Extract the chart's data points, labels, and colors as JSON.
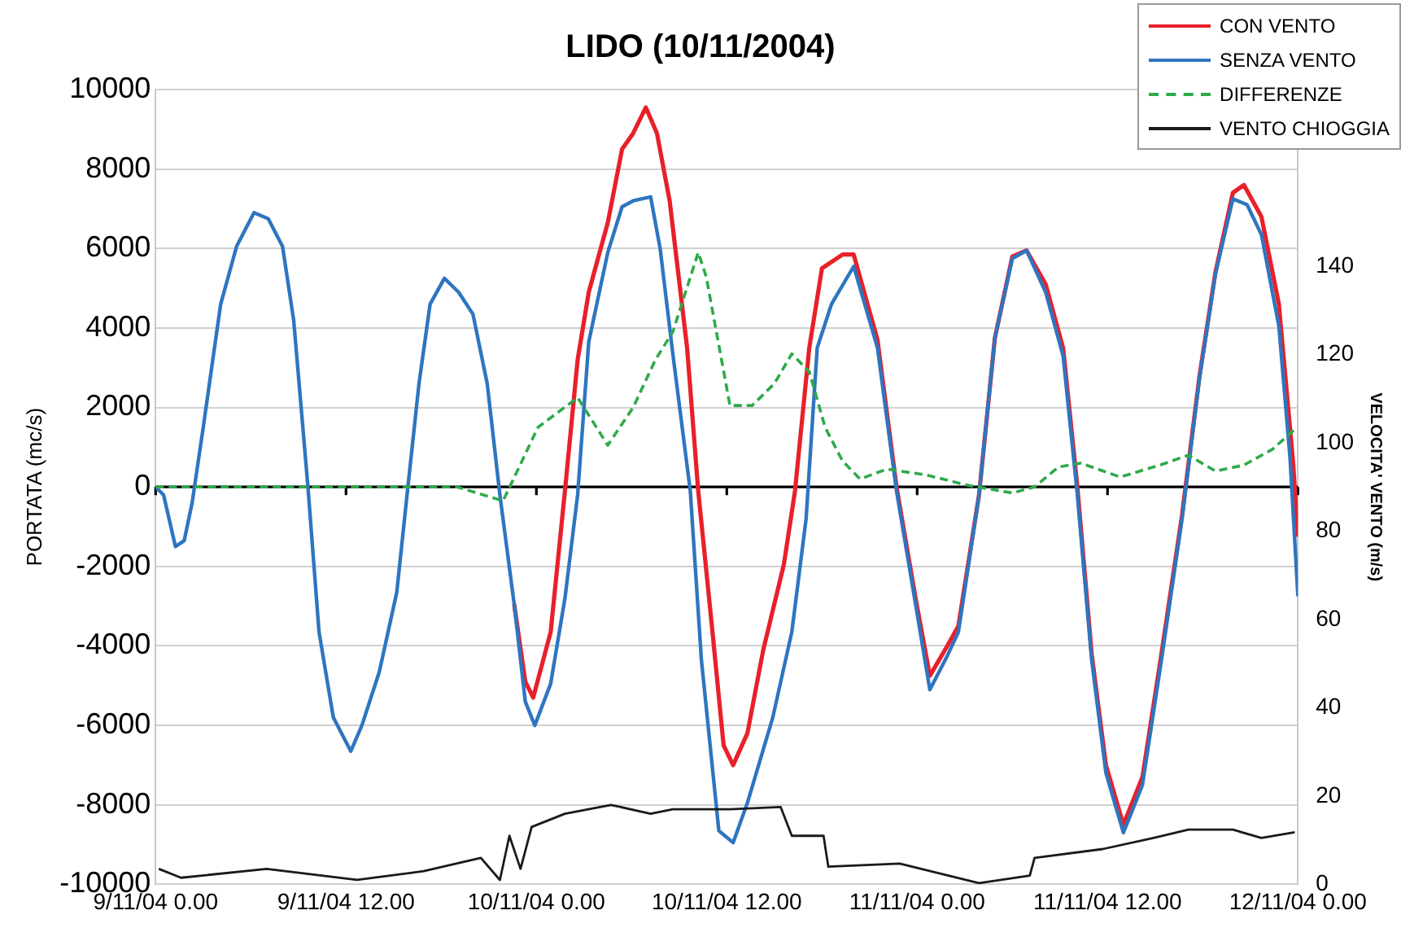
{
  "chart_data": {
    "type": "line",
    "title": "LIDO (10/11/2004)",
    "ylabel": "PORTATA (mc/s)",
    "y2label": "VELOCITA' VENTO (m/s)",
    "xlim": [
      "2004-11-09T00:00",
      "2004-11-12T00:00"
    ],
    "xticks": [
      {
        "value": "2004-11-09T00:00",
        "label": "9/11/04 0.00"
      },
      {
        "value": "2004-11-09T12:00",
        "label": "9/11/04 12.00"
      },
      {
        "value": "2004-11-10T00:00",
        "label": "10/11/04 0.00"
      },
      {
        "value": "2004-11-10T12:00",
        "label": "10/11/04 12.00"
      },
      {
        "value": "2004-11-11T00:00",
        "label": "11/11/04 0.00"
      },
      {
        "value": "2004-11-11T12:00",
        "label": "11/11/04 12.00"
      },
      {
        "value": "2004-11-12T00:00",
        "label": "12/11/04 0.00"
      }
    ],
    "ylim": [
      -10000,
      10000
    ],
    "yticks": [
      -10000,
      -8000,
      -6000,
      -4000,
      -2000,
      0,
      2000,
      4000,
      6000,
      8000,
      10000
    ],
    "y2lim": [
      0,
      180
    ],
    "y2ticks": [
      0,
      20,
      40,
      60,
      80,
      100,
      120,
      140
    ],
    "grid": "y",
    "legend": "top right",
    "marker": "none",
    "ref_lines": [
      {
        "axis": "y",
        "value": 0,
        "color": "#000000"
      }
    ],
    "series": [
      {
        "name": "CON VENTO",
        "color": "#e8202a",
        "line_style": "solid",
        "x": [
          "2004-11-09T22:36",
          "2004-11-09T23:18",
          "2004-11-09T23:48",
          "2004-11-10T00:54",
          "2004-11-10T01:48",
          "2004-11-10T02:36",
          "2004-11-10T03:18",
          "2004-11-10T04:30",
          "2004-11-10T05:24",
          "2004-11-10T06:06",
          "2004-11-10T06:54",
          "2004-11-10T07:36",
          "2004-11-10T08:24",
          "2004-11-10T09:30",
          "2004-11-10T10:12",
          "2004-11-10T11:06",
          "2004-11-10T11:48",
          "2004-11-10T12:24",
          "2004-11-10T13:18",
          "2004-11-10T14:18",
          "2004-11-10T15:36",
          "2004-11-10T16:18",
          "2004-11-10T17:12",
          "2004-11-10T18:00",
          "2004-11-10T19:18",
          "2004-11-10T20:00",
          "2004-11-10T21:30",
          "2004-11-10T22:42",
          "2004-11-10T23:54",
          "2004-11-11T00:48",
          "2004-11-11T01:54",
          "2004-11-11T02:36",
          "2004-11-11T03:54",
          "2004-11-11T04:54",
          "2004-11-11T06:00",
          "2004-11-11T06:54",
          "2004-11-11T08:06",
          "2004-11-11T09:12",
          "2004-11-11T10:06",
          "2004-11-11T11:00",
          "2004-11-11T11:54",
          "2004-11-11T13:00",
          "2004-11-11T14:12",
          "2004-11-11T15:24",
          "2004-11-11T16:42",
          "2004-11-11T17:48",
          "2004-11-11T18:48",
          "2004-11-11T19:54",
          "2004-11-11T20:36",
          "2004-11-11T21:42",
          "2004-11-11T22:48",
          "2004-11-11T23:42",
          "2004-11-12T00:00"
        ],
        "values": [
          -2950,
          -4900,
          -5300,
          -3650,
          -100,
          3200,
          4900,
          6650,
          8500,
          8900,
          9550,
          8900,
          7200,
          3500,
          -100,
          -3650,
          -6500,
          -7000,
          -6200,
          -4100,
          -1950,
          -100,
          3500,
          5500,
          5850,
          5850,
          3700,
          0,
          -2800,
          -4750,
          -4000,
          -3500,
          -200,
          3750,
          5800,
          5950,
          5100,
          3500,
          0,
          -4200,
          -7000,
          -8500,
          -7300,
          -4200,
          -700,
          2800,
          5400,
          7400,
          7600,
          6800,
          4600,
          600,
          -1250
        ]
      },
      {
        "name": "SENZA VENTO",
        "color": "#2e75c0",
        "line_style": "solid",
        "x": [
          "2004-11-09T00:00",
          "2004-11-09T00:30",
          "2004-11-09T01:15",
          "2004-11-09T01:48",
          "2004-11-09T02:18",
          "2004-11-09T03:00",
          "2004-11-09T04:06",
          "2004-11-09T05:06",
          "2004-11-09T06:12",
          "2004-11-09T07:06",
          "2004-11-09T08:00",
          "2004-11-09T08:42",
          "2004-11-09T09:36",
          "2004-11-09T10:18",
          "2004-11-09T11:12",
          "2004-11-09T12:18",
          "2004-11-09T13:00",
          "2004-11-09T14:06",
          "2004-11-09T15:12",
          "2004-11-09T15:54",
          "2004-11-09T16:36",
          "2004-11-09T17:18",
          "2004-11-09T18:12",
          "2004-11-09T19:06",
          "2004-11-09T20:00",
          "2004-11-09T20:54",
          "2004-11-09T21:42",
          "2004-11-09T22:36",
          "2004-11-09T23:18",
          "2004-11-09T23:54",
          "2004-11-10T00:54",
          "2004-11-10T01:48",
          "2004-11-10T02:36",
          "2004-11-10T03:18",
          "2004-11-10T04:30",
          "2004-11-10T05:24",
          "2004-11-10T06:06",
          "2004-11-10T07:12",
          "2004-11-10T07:48",
          "2004-11-10T08:36",
          "2004-11-10T09:42",
          "2004-11-10T10:24",
          "2004-11-10T11:30",
          "2004-11-10T12:24",
          "2004-11-10T13:18",
          "2004-11-10T14:54",
          "2004-11-10T16:06",
          "2004-11-10T17:00",
          "2004-11-10T17:42",
          "2004-11-10T18:36",
          "2004-11-10T20:00",
          "2004-11-10T21:30",
          "2004-11-10T22:42",
          "2004-11-10T23:54",
          "2004-11-11T00:48",
          "2004-11-11T01:54",
          "2004-11-11T02:36",
          "2004-11-11T03:54",
          "2004-11-11T04:54",
          "2004-11-11T06:00",
          "2004-11-11T06:54",
          "2004-11-11T08:06",
          "2004-11-11T09:12",
          "2004-11-11T10:06",
          "2004-11-11T11:00",
          "2004-11-11T11:54",
          "2004-11-11T13:00",
          "2004-11-11T14:12",
          "2004-11-11T15:24",
          "2004-11-11T16:42",
          "2004-11-11T17:48",
          "2004-11-11T18:48",
          "2004-11-11T19:54",
          "2004-11-11T20:48",
          "2004-11-11T21:42",
          "2004-11-11T22:48",
          "2004-11-11T23:30",
          "2004-11-12T00:00"
        ],
        "values": [
          0,
          -200,
          -1500,
          -1350,
          -400,
          1500,
          4600,
          6050,
          6900,
          6750,
          6050,
          4200,
          0,
          -3650,
          -5800,
          -6650,
          -6000,
          -4650,
          -2650,
          0,
          2600,
          4600,
          5250,
          4900,
          4350,
          2600,
          -200,
          -2950,
          -5400,
          -6000,
          -4950,
          -2800,
          -200,
          3650,
          5900,
          7050,
          7200,
          7300,
          6000,
          3350,
          -100,
          -4350,
          -8650,
          -8950,
          -7950,
          -5800,
          -3650,
          -800,
          3500,
          4600,
          5550,
          3500,
          -100,
          -2950,
          -5100,
          -4250,
          -3650,
          -200,
          3750,
          5750,
          5950,
          4900,
          3300,
          -200,
          -4350,
          -7200,
          -8700,
          -7500,
          -4350,
          -800,
          2750,
          5350,
          7250,
          7100,
          6350,
          4050,
          750,
          -2750
        ]
      },
      {
        "name": "DIFFERENZE",
        "color": "#2eaa4a",
        "line_style": "dashed",
        "x": [
          "2004-11-09T00:00",
          "2004-11-09T05:00",
          "2004-11-09T10:00",
          "2004-11-09T15:00",
          "2004-11-09T19:00",
          "2004-11-09T21:54",
          "2004-11-10T00:06",
          "2004-11-10T02:36",
          "2004-11-10T04:30",
          "2004-11-10T06:06",
          "2004-11-10T07:30",
          "2004-11-10T08:36",
          "2004-11-10T10:12",
          "2004-11-10T10:42",
          "2004-11-10T12:12",
          "2004-11-10T13:36",
          "2004-11-10T15:00",
          "2004-11-10T16:06",
          "2004-11-10T17:12",
          "2004-11-10T18:12",
          "2004-11-10T19:18",
          "2004-11-10T20:24",
          "2004-11-10T22:06",
          "2004-11-11T00:36",
          "2004-11-11T03:06",
          "2004-11-11T06:00",
          "2004-11-11T07:24",
          "2004-11-11T08:54",
          "2004-11-11T10:18",
          "2004-11-11T12:48",
          "2004-11-11T15:18",
          "2004-11-11T17:06",
          "2004-11-11T18:48",
          "2004-11-11T20:36",
          "2004-11-11T22:24",
          "2004-11-11T23:48"
        ],
        "values": [
          0,
          0,
          0,
          0,
          0,
          -350,
          1500,
          2250,
          1050,
          2000,
          3200,
          3900,
          5900,
          5300,
          2050,
          2050,
          2600,
          3350,
          2900,
          1500,
          650,
          200,
          450,
          300,
          50,
          -150,
          0,
          500,
          600,
          250,
          550,
          800,
          400,
          550,
          950,
          1450
        ]
      },
      {
        "name": "VENTO CHIOGGIA",
        "color": "#1a1a1a",
        "line_style": "solid",
        "axis": "y2",
        "x": [
          "2004-11-09T00:12",
          "2004-11-09T01:36",
          "2004-11-09T07:00",
          "2004-11-09T12:42",
          "2004-11-09T16:54",
          "2004-11-09T20:30",
          "2004-11-09T21:42",
          "2004-11-09T22:18",
          "2004-11-09T23:00",
          "2004-11-09T23:42",
          "2004-11-10T01:48",
          "2004-11-10T04:42",
          "2004-11-10T07:12",
          "2004-11-10T08:36",
          "2004-11-10T12:12",
          "2004-11-10T15:24",
          "2004-11-10T16:06",
          "2004-11-10T18:06",
          "2004-11-10T18:24",
          "2004-11-10T22:54",
          "2004-11-11T03:54",
          "2004-11-11T07:06",
          "2004-11-11T07:24",
          "2004-11-11T11:42",
          "2004-11-11T14:54",
          "2004-11-11T17:06",
          "2004-11-11T19:54",
          "2004-11-11T21:42",
          "2004-11-11T23:48"
        ],
        "values": [
          3.5,
          1.5,
          3.5,
          1,
          3,
          6,
          1,
          11,
          3.5,
          13,
          16,
          18,
          16,
          17,
          17,
          17.5,
          11,
          11,
          4,
          4.7,
          0.3,
          2,
          6,
          8,
          10.5,
          12.4,
          12.4,
          10.5,
          11.8
        ]
      }
    ]
  }
}
